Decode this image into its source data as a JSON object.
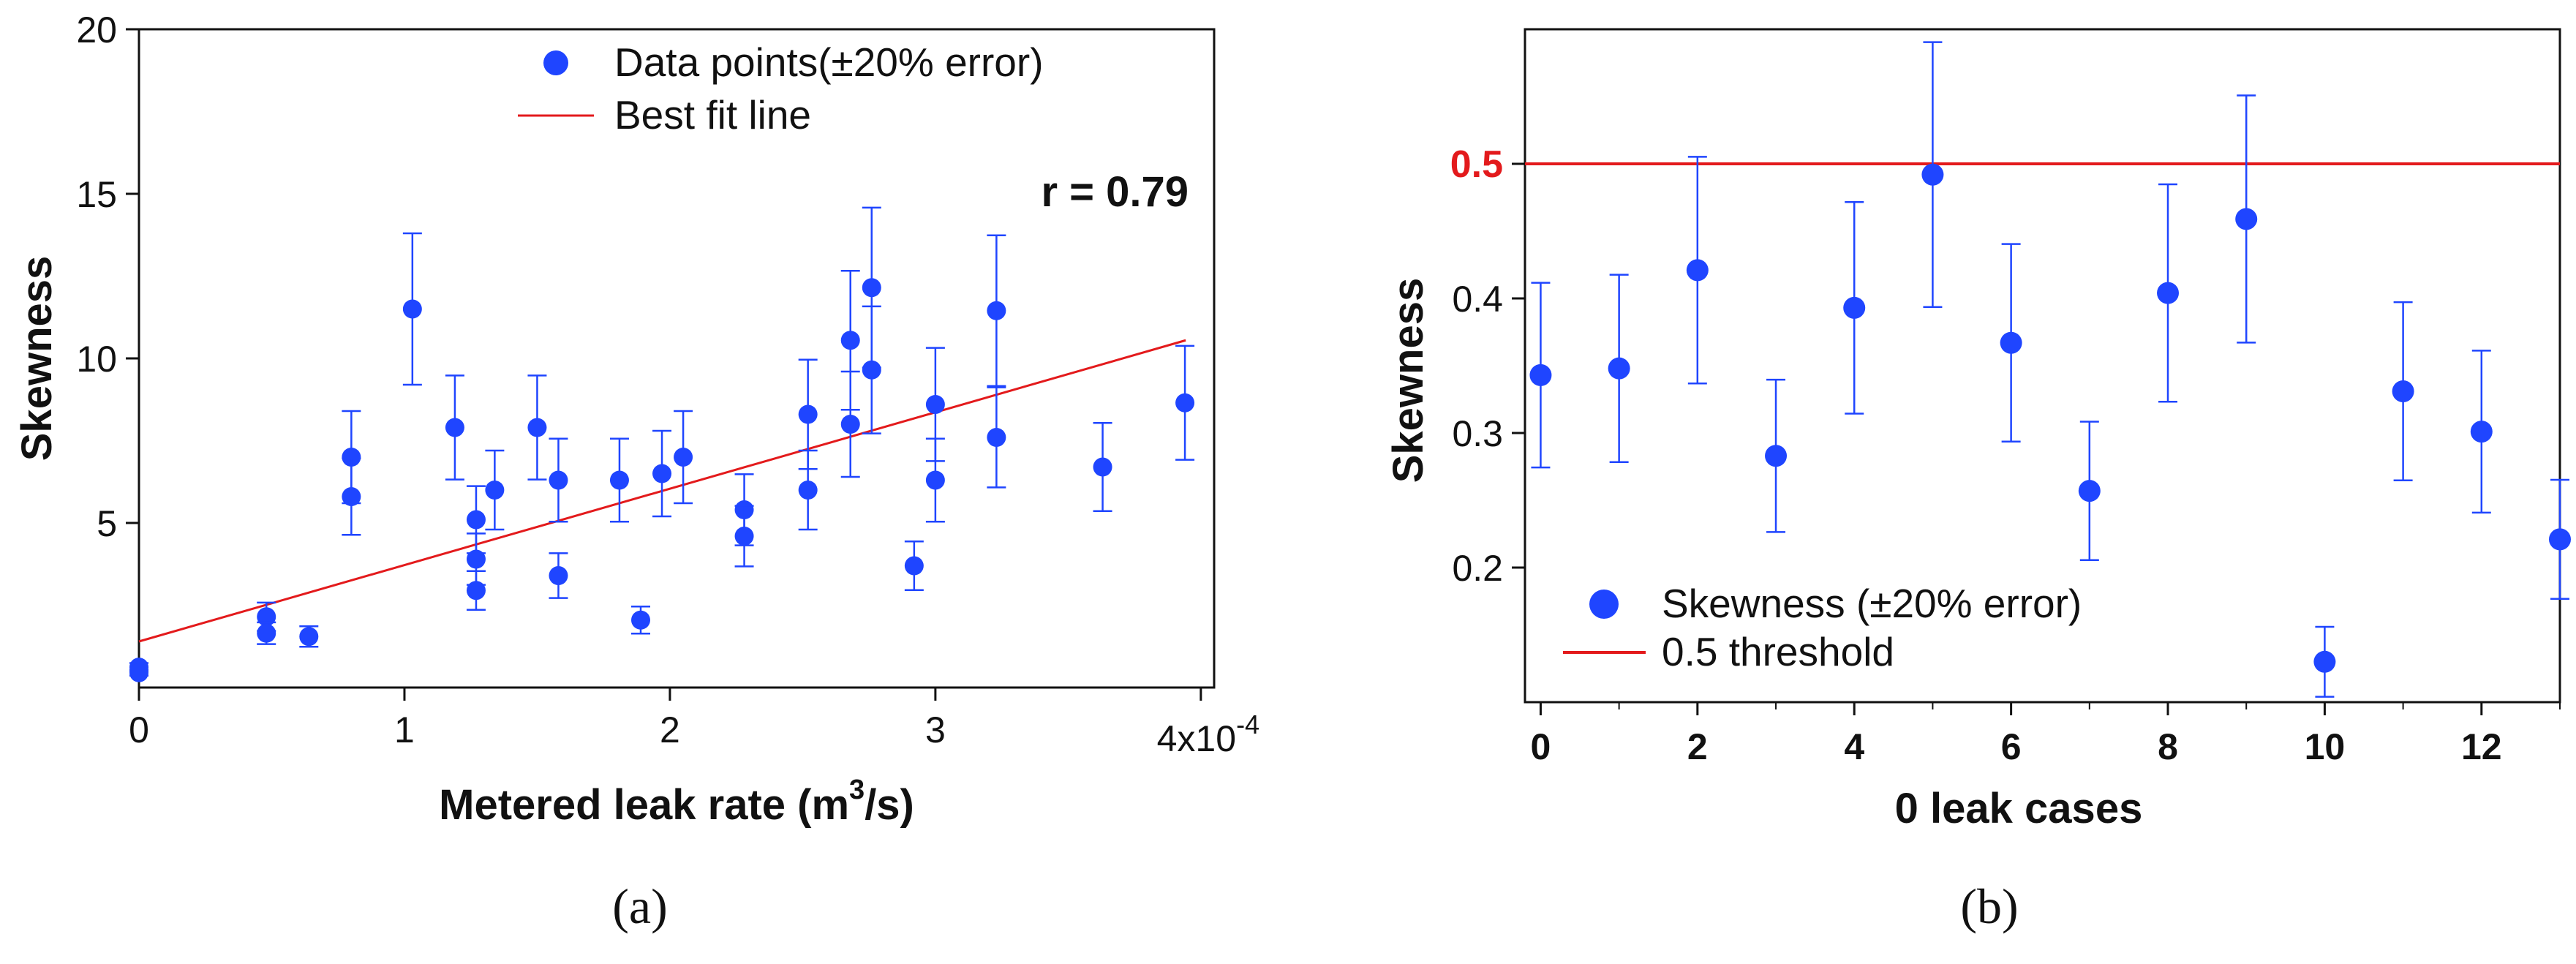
{
  "colors": {
    "points": "#1f45ff",
    "errorbar": "#1f45ff",
    "line": "#e31a1c",
    "threshold_label": "#e31a1c",
    "axis": "#111111"
  },
  "chart_data": [
    {
      "type": "scatter",
      "panel": "(a)",
      "xlabel": "Metered leak rate (m³/s)",
      "xlabel_parts": {
        "main": "Metered leak rate (m",
        "sup": "3",
        "tail": "/s)"
      },
      "ylabel": "Skewness",
      "xlim": [
        0,
        0.000405
      ],
      "ylim": [
        0,
        20
      ],
      "xticks": [
        0,
        0.0001,
        0.0002,
        0.0003,
        0.0004
      ],
      "xtick_labels": [
        "0",
        "1",
        "2",
        "3",
        ""
      ],
      "x_multiplier_label": {
        "main": "4x10",
        "sup": "-4"
      },
      "yticks": [
        5,
        10,
        15,
        20
      ],
      "ytick_labels": [
        "5",
        "10",
        "15",
        "20"
      ],
      "legend_position": "top",
      "legend": [
        "Data points(±20% error)",
        "Best fit line"
      ],
      "annotation": "r = 0.79",
      "error": "±20%",
      "points": [
        {
          "x": 0.0,
          "y": 0.62
        },
        {
          "x": 0.0,
          "y": 0.45
        },
        {
          "x": 4.8e-05,
          "y": 2.15
        },
        {
          "x": 4.8e-05,
          "y": 1.65
        },
        {
          "x": 6.4e-05,
          "y": 1.55
        },
        {
          "x": 8e-05,
          "y": 7.0
        },
        {
          "x": 8e-05,
          "y": 5.8
        },
        {
          "x": 0.000103,
          "y": 11.5
        },
        {
          "x": 0.000119,
          "y": 7.9
        },
        {
          "x": 0.000127,
          "y": 5.1
        },
        {
          "x": 0.000127,
          "y": 3.9
        },
        {
          "x": 0.000127,
          "y": 2.95
        },
        {
          "x": 0.000134,
          "y": 6.0
        },
        {
          "x": 0.00015,
          "y": 7.9
        },
        {
          "x": 0.000158,
          "y": 6.3
        },
        {
          "x": 0.000158,
          "y": 3.4
        },
        {
          "x": 0.000181,
          "y": 6.3
        },
        {
          "x": 0.000189,
          "y": 2.05
        },
        {
          "x": 0.000197,
          "y": 6.5
        },
        {
          "x": 0.000205,
          "y": 7.0
        },
        {
          "x": 0.000228,
          "y": 5.4
        },
        {
          "x": 0.000228,
          "y": 4.6
        },
        {
          "x": 0.000252,
          "y": 8.3
        },
        {
          "x": 0.000252,
          "y": 6.0
        },
        {
          "x": 0.000268,
          "y": 10.55
        },
        {
          "x": 0.000268,
          "y": 8.0
        },
        {
          "x": 0.000276,
          "y": 12.15
        },
        {
          "x": 0.000276,
          "y": 9.65
        },
        {
          "x": 0.000292,
          "y": 3.7
        },
        {
          "x": 0.0003,
          "y": 8.6
        },
        {
          "x": 0.0003,
          "y": 6.3
        },
        {
          "x": 0.000323,
          "y": 11.45
        },
        {
          "x": 0.000323,
          "y": 7.6
        },
        {
          "x": 0.000363,
          "y": 6.7
        },
        {
          "x": 0.000394,
          "y": 8.65
        }
      ],
      "fit_line": {
        "x": [
          0.0,
          0.0003943
        ],
        "y": [
          1.4,
          10.55
        ]
      }
    },
    {
      "type": "scatter",
      "panel": "(b)",
      "xlabel": "0 leak cases",
      "ylabel": "Skewness",
      "xlim": [
        -0.2,
        13
      ],
      "ylim": [
        0.1,
        0.6
      ],
      "xticks": [
        0,
        2,
        4,
        6,
        8,
        10,
        12
      ],
      "yticks": [
        0.2,
        0.3,
        0.4,
        0.5
      ],
      "ytick_labels": [
        "0.2",
        "0.3",
        "0.4",
        "0.5"
      ],
      "highlighted_ytick": "0.5",
      "legend_position": "bottom-left",
      "legend": [
        "Skewness (±20% error)",
        "0.5 threshold"
      ],
      "threshold": 0.5,
      "error": "±20%",
      "points": [
        {
          "x": 0,
          "y": 0.343
        },
        {
          "x": 1,
          "y": 0.348
        },
        {
          "x": 2,
          "y": 0.421
        },
        {
          "x": 3,
          "y": 0.283
        },
        {
          "x": 4,
          "y": 0.393
        },
        {
          "x": 5,
          "y": 0.492
        },
        {
          "x": 6,
          "y": 0.367
        },
        {
          "x": 7,
          "y": 0.257
        },
        {
          "x": 8,
          "y": 0.404
        },
        {
          "x": 9,
          "y": 0.459
        },
        {
          "x": 10,
          "y": 0.13
        },
        {
          "x": 11,
          "y": 0.331
        },
        {
          "x": 12,
          "y": 0.301
        },
        {
          "x": 13,
          "y": 0.221
        }
      ]
    }
  ]
}
